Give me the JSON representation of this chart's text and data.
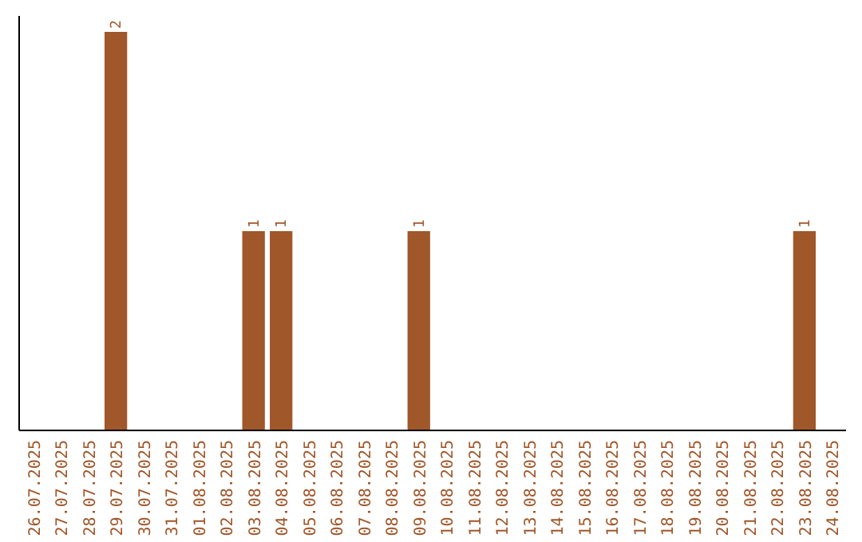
{
  "chart_data": {
    "type": "bar",
    "categories": [
      "26.07.2025",
      "27.07.2025",
      "28.07.2025",
      "29.07.2025",
      "30.07.2025",
      "31.07.2025",
      "01.08.2025",
      "02.08.2025",
      "03.08.2025",
      "04.08.2025",
      "05.08.2025",
      "06.08.2025",
      "07.08.2025",
      "08.08.2025",
      "09.08.2025",
      "10.08.2025",
      "11.08.2025",
      "12.08.2025",
      "13.08.2025",
      "14.08.2025",
      "15.08.2025",
      "16.08.2025",
      "17.08.2025",
      "18.08.2025",
      "19.08.2025",
      "20.08.2025",
      "21.08.2025",
      "22.08.2025",
      "23.08.2025",
      "24.08.2025"
    ],
    "values": [
      0,
      0,
      0,
      2,
      0,
      0,
      0,
      0,
      1,
      1,
      0,
      0,
      0,
      0,
      1,
      0,
      0,
      0,
      0,
      0,
      0,
      0,
      0,
      0,
      0,
      0,
      0,
      0,
      1,
      0
    ],
    "value_labels": [
      null,
      null,
      null,
      "2",
      null,
      null,
      null,
      null,
      "1",
      "1",
      null,
      null,
      null,
      null,
      "1",
      null,
      null,
      null,
      null,
      null,
      null,
      null,
      null,
      null,
      null,
      null,
      null,
      null,
      "1",
      null
    ],
    "color": "#a0572a"
  }
}
